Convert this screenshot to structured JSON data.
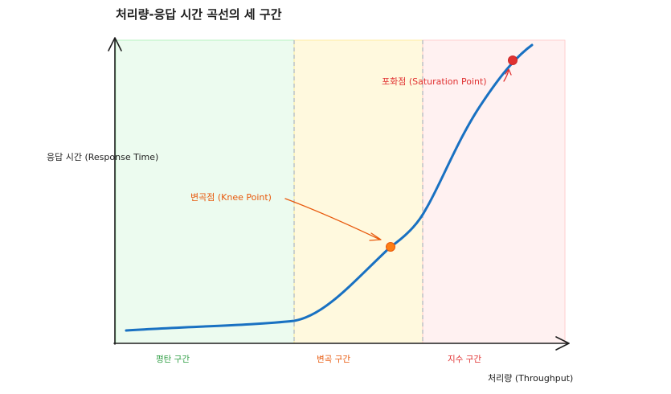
{
  "title": "처리량-응답 시간 곡선의 세 구간",
  "x_axis_label": "처리량 (Throughput)",
  "y_axis_label": "응답 시간 (Response Time)",
  "regions": [
    {
      "label": "평탄 구간",
      "fill": "#ebfbee",
      "text_color": "#2f9e44",
      "border": "#b2f2bb"
    },
    {
      "label": "변곡 구간",
      "fill": "#fff9db",
      "text_color": "#e8590c",
      "border": "#ffec99"
    },
    {
      "label": "지수 구간",
      "fill": "#fff0f0",
      "text_color": "#e03131",
      "border": "#ffc9c9"
    }
  ],
  "annotations": {
    "knee": {
      "label": "변곡점 (Knee Point)",
      "color": "#e8590c",
      "point_color": "#fd7e14"
    },
    "saturation": {
      "label": "포화점 (Saturation Point)",
      "color": "#e03131",
      "point_color": "#e03131"
    }
  },
  "colors": {
    "curve": "#1971c2",
    "axis": "#1e1e1e",
    "divider": "#adb5bd"
  }
}
